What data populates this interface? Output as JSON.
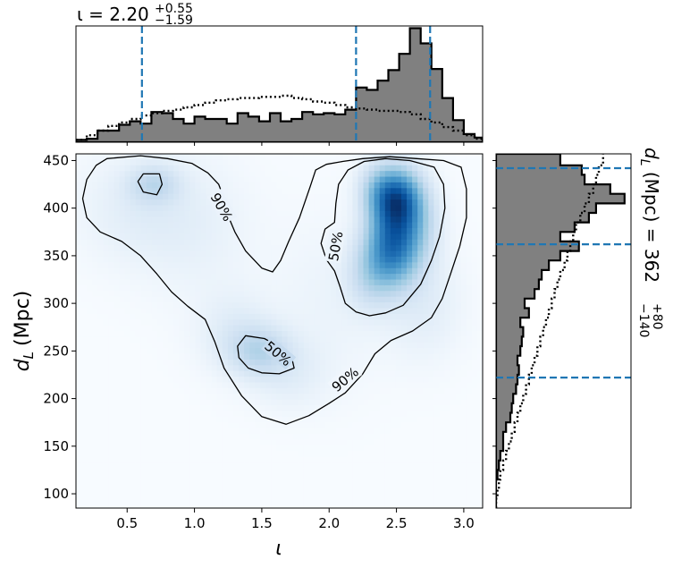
{
  "chart_data": [
    {
      "type": "heatmap",
      "panel": "joint",
      "xlabel_symbol": "ι",
      "ylabel_text": "d",
      "ylabel_sub": "L",
      "ylabel_unit": "(Mpc)",
      "xlim": [
        0.12,
        3.14
      ],
      "ylim": [
        85,
        457
      ],
      "xticks": [
        0.5,
        1.0,
        1.5,
        2.0,
        2.5,
        3.0
      ],
      "xtick_labels": [
        "0.5",
        "1.0",
        "1.5",
        "2.0",
        "2.5",
        "3.0"
      ],
      "yticks": [
        100,
        150,
        200,
        250,
        300,
        350,
        400,
        450
      ],
      "ytick_labels": [
        "100",
        "150",
        "200",
        "250",
        "300",
        "350",
        "400",
        "450"
      ],
      "colormap": "Blues",
      "density_components": [
        {
          "x": 2.5,
          "y": 410,
          "sx": 0.12,
          "sy": 22,
          "w": 1.0
        },
        {
          "x": 2.47,
          "y": 360,
          "sx": 0.13,
          "sy": 28,
          "w": 0.9
        },
        {
          "x": 2.3,
          "y": 330,
          "sx": 0.12,
          "sy": 25,
          "w": 0.25
        },
        {
          "x": 2.65,
          "y": 385,
          "sx": 0.12,
          "sy": 30,
          "w": 0.3
        },
        {
          "x": 2.35,
          "y": 420,
          "sx": 0.1,
          "sy": 20,
          "w": 0.25
        },
        {
          "x": 1.48,
          "y": 250,
          "sx": 0.16,
          "sy": 18,
          "w": 0.28
        },
        {
          "x": 1.3,
          "y": 270,
          "sx": 0.2,
          "sy": 30,
          "w": 0.12
        },
        {
          "x": 1.7,
          "y": 225,
          "sx": 0.2,
          "sy": 25,
          "w": 0.1
        },
        {
          "x": 0.7,
          "y": 425,
          "sx": 0.13,
          "sy": 14,
          "w": 0.25
        },
        {
          "x": 0.55,
          "y": 400,
          "sx": 0.3,
          "sy": 40,
          "w": 0.1
        },
        {
          "x": 1.0,
          "y": 380,
          "sx": 0.3,
          "sy": 50,
          "w": 0.08
        },
        {
          "x": 2.0,
          "y": 300,
          "sx": 0.3,
          "sy": 60,
          "w": 0.06
        },
        {
          "x": 2.7,
          "y": 300,
          "sx": 0.2,
          "sy": 40,
          "w": 0.12
        }
      ],
      "contours": [
        {
          "label": "50%",
          "label_at": [
            2.05,
            360
          ],
          "label_angle": -80,
          "points": [
            [
              2.42,
              452
            ],
            [
              2.6,
              450
            ],
            [
              2.78,
              443
            ],
            [
              2.85,
              425
            ],
            [
              2.86,
              400
            ],
            [
              2.82,
              370
            ],
            [
              2.76,
              345
            ],
            [
              2.68,
              320
            ],
            [
              2.55,
              298
            ],
            [
              2.42,
              290
            ],
            [
              2.3,
              287
            ],
            [
              2.2,
              291
            ],
            [
              2.12,
              300
            ],
            [
              2.08,
              318
            ],
            [
              2.04,
              334
            ],
            [
              1.98,
              346
            ],
            [
              1.94,
              363
            ],
            [
              1.97,
              378
            ],
            [
              2.04,
              385
            ],
            [
              2.05,
              405
            ],
            [
              2.07,
              425
            ],
            [
              2.14,
              440
            ],
            [
              2.26,
              449
            ]
          ]
        },
        {
          "label": "50%",
          "label_at": [
            1.62,
            247
          ],
          "label_angle": 40,
          "points": [
            [
              1.38,
              266
            ],
            [
              1.52,
              263
            ],
            [
              1.62,
              255
            ],
            [
              1.72,
              244
            ],
            [
              1.74,
              232
            ],
            [
              1.63,
              226
            ],
            [
              1.5,
              227
            ],
            [
              1.4,
              232
            ],
            [
              1.33,
              243
            ],
            [
              1.32,
              255
            ]
          ]
        },
        {
          "label": "",
          "label_at": null,
          "label_angle": 0,
          "points": [
            [
              0.62,
              436
            ],
            [
              0.74,
              436
            ],
            [
              0.76,
              425
            ],
            [
              0.72,
              414
            ],
            [
              0.62,
              417
            ],
            [
              0.58,
              428
            ]
          ]
        },
        {
          "label": "90%",
          "label_at": [
            1.2,
            401
          ],
          "label_angle": 60,
          "points": [
            [
              0.35,
              452
            ],
            [
              0.6,
              455
            ],
            [
              0.8,
              452
            ],
            [
              0.98,
              447
            ],
            [
              1.1,
              437
            ],
            [
              1.18,
              425
            ],
            [
              1.22,
              410
            ],
            [
              1.25,
              392
            ],
            [
              1.3,
              375
            ],
            [
              1.38,
              355
            ],
            [
              1.5,
              337
            ],
            [
              1.58,
              333
            ],
            [
              1.64,
              345
            ],
            [
              1.7,
              365
            ],
            [
              1.78,
              390
            ],
            [
              1.86,
              423
            ],
            [
              1.9,
              440
            ],
            [
              1.98,
              446
            ],
            [
              2.1,
              449
            ],
            [
              2.25,
              452
            ],
            [
              2.45,
              454
            ],
            [
              2.65,
              452
            ],
            [
              2.85,
              450
            ],
            [
              2.98,
              443
            ],
            [
              3.02,
              420
            ],
            [
              3.02,
              390
            ],
            [
              2.97,
              360
            ],
            [
              2.9,
              330
            ],
            [
              2.84,
              305
            ],
            [
              2.76,
              285
            ],
            [
              2.62,
              271
            ],
            [
              2.46,
              261
            ],
            [
              2.34,
              247
            ],
            [
              2.25,
              226
            ],
            [
              2.12,
              206
            ],
            [
              2.0,
              195
            ],
            [
              1.85,
              182
            ],
            [
              1.68,
              173
            ],
            [
              1.5,
              181
            ],
            [
              1.35,
              203
            ],
            [
              1.22,
              232
            ],
            [
              1.15,
              260
            ],
            [
              1.08,
              283
            ],
            [
              0.95,
              297
            ],
            [
              0.83,
              312
            ],
            [
              0.72,
              331
            ],
            [
              0.6,
              350
            ],
            [
              0.46,
              365
            ],
            [
              0.3,
              375
            ],
            [
              0.2,
              390
            ],
            [
              0.17,
              410
            ],
            [
              0.2,
              430
            ],
            [
              0.27,
              445
            ]
          ]
        },
        {
          "label": "90%",
          "label_at": [
            2.12,
            220
          ],
          "label_angle": -40,
          "points": []
        }
      ]
    },
    {
      "type": "area",
      "panel": "marginal-top",
      "variable": "ι",
      "title_value": "2.20",
      "title_upper": "+0.55",
      "title_lower": "−1.59",
      "title_prefix": "ι = ",
      "bin_edges": [
        0.12,
        0.2,
        0.28,
        0.36,
        0.44,
        0.52,
        0.6,
        0.68,
        0.76,
        0.84,
        0.92,
        1.0,
        1.08,
        1.16,
        1.24,
        1.32,
        1.4,
        1.48,
        1.56,
        1.64,
        1.72,
        1.8,
        1.88,
        1.96,
        2.04,
        2.12,
        2.2,
        2.28,
        2.36,
        2.44,
        2.52,
        2.6,
        2.68,
        2.76,
        2.84,
        2.92,
        3.0,
        3.08,
        3.14
      ],
      "hist_values": [
        0.02,
        0.03,
        0.1,
        0.1,
        0.15,
        0.18,
        0.16,
        0.26,
        0.25,
        0.2,
        0.16,
        0.22,
        0.2,
        0.2,
        0.16,
        0.25,
        0.22,
        0.18,
        0.25,
        0.18,
        0.2,
        0.26,
        0.24,
        0.25,
        0.24,
        0.28,
        0.47,
        0.45,
        0.53,
        0.62,
        0.76,
        0.98,
        0.85,
        0.63,
        0.38,
        0.19,
        0.07,
        0.04
      ],
      "prior_values": [
        0.02,
        0.06,
        0.1,
        0.14,
        0.17,
        0.2,
        0.23,
        0.25,
        0.27,
        0.28,
        0.3,
        0.32,
        0.34,
        0.36,
        0.37,
        0.38,
        0.38,
        0.39,
        0.39,
        0.4,
        0.38,
        0.37,
        0.35,
        0.34,
        0.32,
        0.3,
        0.29,
        0.28,
        0.27,
        0.27,
        0.26,
        0.24,
        0.2,
        0.17,
        0.13,
        0.1,
        0.06,
        0.03
      ],
      "quantile_lines": [
        0.61,
        2.2,
        2.75
      ]
    },
    {
      "type": "area",
      "panel": "marginal-right",
      "variable": "d_L",
      "title_prefix": "d",
      "title_sub": "L",
      "title_unit": " (Mpc) = ",
      "title_value": "362",
      "title_upper": "+80",
      "title_lower": "−140",
      "bin_edges": [
        85,
        95,
        105,
        115,
        125,
        135,
        145,
        155,
        165,
        175,
        185,
        195,
        205,
        215,
        225,
        235,
        245,
        255,
        265,
        275,
        285,
        295,
        305,
        315,
        325,
        335,
        345,
        355,
        365,
        375,
        385,
        395,
        405,
        415,
        425,
        435,
        445,
        457
      ],
      "hist_values": [
        0.0,
        0.0,
        0.0,
        0.01,
        0.02,
        0.03,
        0.05,
        0.05,
        0.07,
        0.1,
        0.11,
        0.12,
        0.14,
        0.15,
        0.16,
        0.15,
        0.17,
        0.18,
        0.19,
        0.17,
        0.23,
        0.2,
        0.27,
        0.3,
        0.32,
        0.37,
        0.45,
        0.58,
        0.45,
        0.55,
        0.65,
        0.7,
        0.9,
        0.8,
        0.62,
        0.6,
        0.45
      ],
      "prior_values": [
        0.0,
        0.01,
        0.02,
        0.03,
        0.05,
        0.07,
        0.09,
        0.11,
        0.13,
        0.15,
        0.17,
        0.19,
        0.21,
        0.23,
        0.25,
        0.27,
        0.29,
        0.31,
        0.33,
        0.35,
        0.37,
        0.39,
        0.41,
        0.43,
        0.45,
        0.48,
        0.5,
        0.52,
        0.54,
        0.56,
        0.59,
        0.62,
        0.65,
        0.68,
        0.7,
        0.72,
        0.75
      ],
      "quantile_lines": [
        222,
        362,
        442
      ]
    }
  ]
}
